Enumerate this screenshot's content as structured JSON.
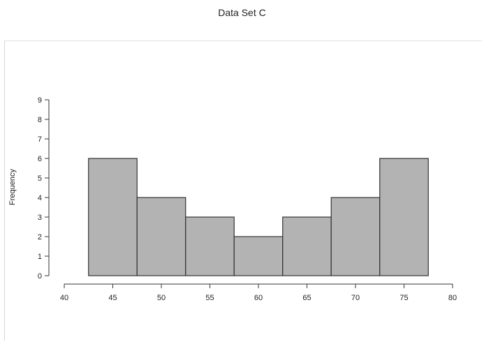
{
  "chart_data": {
    "type": "bar",
    "subtype": "histogram",
    "title": "Data Set C",
    "xlabel": "",
    "ylabel": "Frequency",
    "bins": [
      {
        "from": 42.5,
        "to": 47.5,
        "value": 6
      },
      {
        "from": 47.5,
        "to": 52.5,
        "value": 4
      },
      {
        "from": 52.5,
        "to": 57.5,
        "value": 3
      },
      {
        "from": 57.5,
        "to": 62.5,
        "value": 2
      },
      {
        "from": 62.5,
        "to": 67.5,
        "value": 3
      },
      {
        "from": 67.5,
        "to": 72.5,
        "value": 4
      },
      {
        "from": 72.5,
        "to": 77.5,
        "value": 6
      }
    ],
    "categories": [
      "45",
      "50",
      "55",
      "60",
      "65",
      "70",
      "75"
    ],
    "values": [
      6,
      4,
      3,
      2,
      3,
      4,
      6
    ],
    "xlim": [
      40,
      80
    ],
    "ylim": [
      0,
      9
    ],
    "x_ticks": [
      40,
      45,
      50,
      55,
      60,
      65,
      70,
      75,
      80
    ],
    "y_ticks": [
      0,
      1,
      2,
      3,
      4,
      5,
      6,
      7,
      8,
      9
    ],
    "grid": false,
    "legend": "none",
    "bar_color": "#b3b3b3",
    "edge_color": "#333333"
  }
}
